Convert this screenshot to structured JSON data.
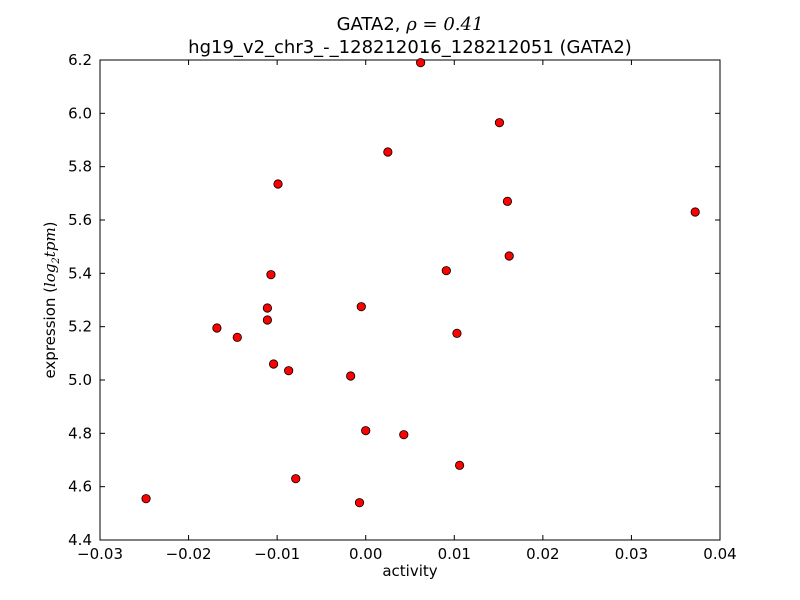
{
  "chart_data": {
    "type": "scatter",
    "title_line1_prefix": "GATA2, ",
    "title_line1_math": "ρ = 0.41",
    "title_line2": "hg19_v2_chr3_-_128212016_128212051 (GATA2)",
    "xlabel": "activity",
    "ylabel_text": "expression ",
    "ylabel_math_open": "(",
    "ylabel_math_log": "log",
    "ylabel_math_sub": "2",
    "ylabel_math_rest": "tpm",
    "ylabel_math_close": ")",
    "xlim": [
      -0.03,
      0.04
    ],
    "ylim": [
      4.4,
      6.2
    ],
    "xticks": [
      -0.03,
      -0.02,
      -0.01,
      0.0,
      0.01,
      0.02,
      0.03,
      0.04
    ],
    "xtick_labels": [
      "−0.03",
      "−0.02",
      "−0.01",
      "0.00",
      "0.01",
      "0.02",
      "0.03",
      "0.04"
    ],
    "yticks": [
      4.4,
      4.6,
      4.8,
      5.0,
      5.2,
      5.4,
      5.6,
      5.8,
      6.0,
      6.2
    ],
    "ytick_labels": [
      "4.4",
      "4.6",
      "4.8",
      "5.0",
      "5.2",
      "5.4",
      "5.6",
      "5.8",
      "6.0",
      "6.2"
    ],
    "grid": false,
    "marker_color": "#ff0000",
    "marker_edge": "#000000",
    "points": [
      {
        "x": 0.0062,
        "y": 6.19
      },
      {
        "x": 0.0151,
        "y": 5.965
      },
      {
        "x": 0.0025,
        "y": 5.855
      },
      {
        "x": -0.0099,
        "y": 5.735
      },
      {
        "x": 0.016,
        "y": 5.67
      },
      {
        "x": 0.0372,
        "y": 5.63
      },
      {
        "x": 0.0162,
        "y": 5.465
      },
      {
        "x": 0.0091,
        "y": 5.41
      },
      {
        "x": -0.0107,
        "y": 5.395
      },
      {
        "x": -0.0111,
        "y": 5.27
      },
      {
        "x": -0.0005,
        "y": 5.275
      },
      {
        "x": -0.0111,
        "y": 5.225
      },
      {
        "x": -0.0168,
        "y": 5.195
      },
      {
        "x": 0.0103,
        "y": 5.175
      },
      {
        "x": -0.0145,
        "y": 5.16
      },
      {
        "x": -0.0104,
        "y": 5.06
      },
      {
        "x": -0.0087,
        "y": 5.035
      },
      {
        "x": -0.0017,
        "y": 5.015
      },
      {
        "x": 0.0,
        "y": 4.81
      },
      {
        "x": 0.0043,
        "y": 4.795
      },
      {
        "x": 0.0106,
        "y": 4.68
      },
      {
        "x": -0.0079,
        "y": 4.63
      },
      {
        "x": -0.0248,
        "y": 4.555
      },
      {
        "x": -0.0007,
        "y": 4.54
      }
    ]
  }
}
